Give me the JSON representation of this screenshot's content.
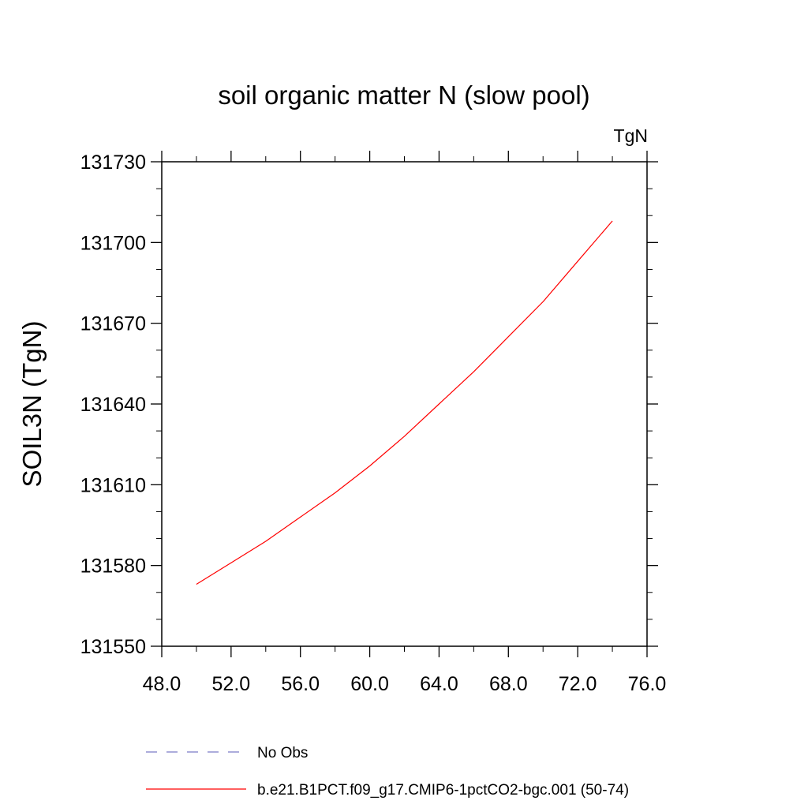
{
  "chart_data": {
    "type": "line",
    "title": "soil organic matter N (slow pool)",
    "units_label": "TgN",
    "ylabel": "SOIL3N  (TgN)",
    "xlabel": "",
    "xlim": [
      48,
      76
    ],
    "ylim": [
      131550,
      131730
    ],
    "x_ticks": [
      48,
      52,
      56,
      60,
      64,
      68,
      72,
      76
    ],
    "x_tick_labels": [
      "48.0",
      "52.0",
      "56.0",
      "60.0",
      "64.0",
      "68.0",
      "72.0",
      "76.0"
    ],
    "y_ticks": [
      131550,
      131580,
      131610,
      131640,
      131670,
      131700,
      131730
    ],
    "y_tick_labels": [
      "131550",
      "131580",
      "131610",
      "131640",
      "131670",
      "131700",
      "131730"
    ],
    "grid": false,
    "legend_placement": "bottom",
    "series": [
      {
        "name": "No Obs",
        "color": "#7b7bc8",
        "dashed": true,
        "x": [],
        "y": []
      },
      {
        "name": "b.e21.B1PCT.f09_g17.CMIP6-1pctCO2-bgc.001 (50-74)",
        "color": "#ff0000",
        "dashed": false,
        "x": [
          50,
          52,
          54,
          56,
          58,
          60,
          62,
          64,
          66,
          68,
          70,
          72,
          74
        ],
        "y": [
          131573,
          131581,
          131589,
          131598,
          131607,
          131617,
          131628,
          131640,
          131652,
          131665,
          131678,
          131693,
          131708
        ]
      }
    ]
  }
}
